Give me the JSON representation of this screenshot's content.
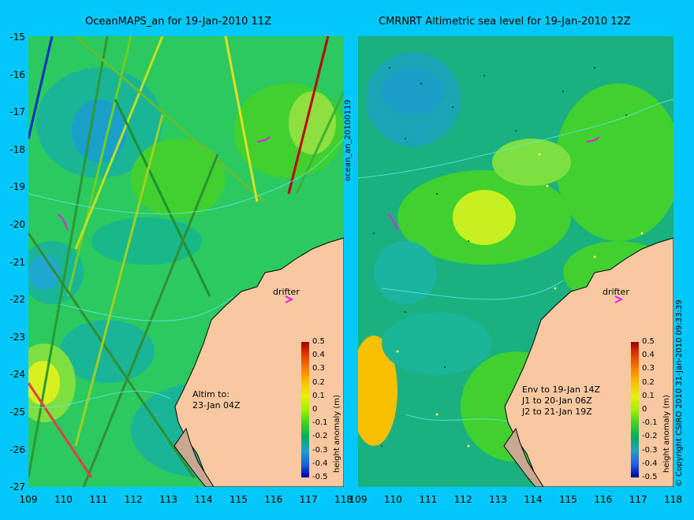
{
  "left_title": "OceanMAPS_an for 19-Jan-2010 11Z",
  "right_title": "CMRNRT Altimetric sea level  for 19-Jan-2010 12Z",
  "y_ticks": [
    "-15",
    "-16",
    "-17",
    "-18",
    "-19",
    "-20",
    "-21",
    "-22",
    "-23",
    "-24",
    "-25",
    "-26",
    "-27"
  ],
  "x_ticks": [
    "109",
    "110",
    "111",
    "112",
    "113",
    "114",
    "115",
    "116",
    "117",
    "118"
  ],
  "right_x_ticks": [
    "109",
    "110",
    "111",
    "112",
    "113",
    "114",
    "115",
    "116",
    "117",
    "118"
  ],
  "drifter_label": "drifter",
  "left_note": [
    "Altim to:",
    "23-Jan 04Z"
  ],
  "right_note": [
    "Env to 19-Jan 14Z",
    "J1 to 20-Jan 06Z",
    "J2 to 21-Jan 19Z"
  ],
  "colorbar": {
    "ticks": [
      "0.5",
      "0.4",
      "0.3",
      "0.2",
      "0.1",
      "0",
      "-0.1",
      "-0.2",
      "-0.3",
      "-0.4",
      "-0.5"
    ],
    "label": "height anomaly (m)",
    "colors": [
      "#a00000",
      "#e04000",
      "#f88000",
      "#f8c000",
      "#e8f000",
      "#a0f000",
      "#40d020",
      "#00b060",
      "#20a0c0",
      "#2060e0",
      "#0000a0"
    ]
  },
  "side_label_left": "ocean_an_20100119",
  "side_label_right": "© Copyright CSIRO 2010   31-Jan-2010 09:33:39"
}
